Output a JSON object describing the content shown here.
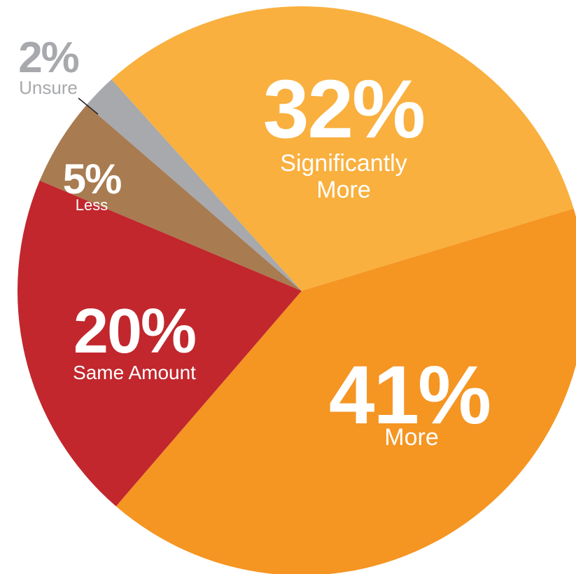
{
  "chart_data": {
    "type": "pie",
    "slices": [
      {
        "value": 32,
        "label": "32%",
        "category": "Significantly More",
        "color": "#f9b03e"
      },
      {
        "value": 41,
        "label": "41%",
        "category": "More",
        "color": "#f59522"
      },
      {
        "value": 20,
        "label": "20%",
        "category": "Same Amount",
        "color": "#c1272d"
      },
      {
        "value": 5,
        "label": "5%",
        "category": "Less",
        "color": "#a87b51"
      },
      {
        "value": 2,
        "label": "2%",
        "category": "Unsure",
        "color": "#a7a9ac"
      }
    ]
  }
}
